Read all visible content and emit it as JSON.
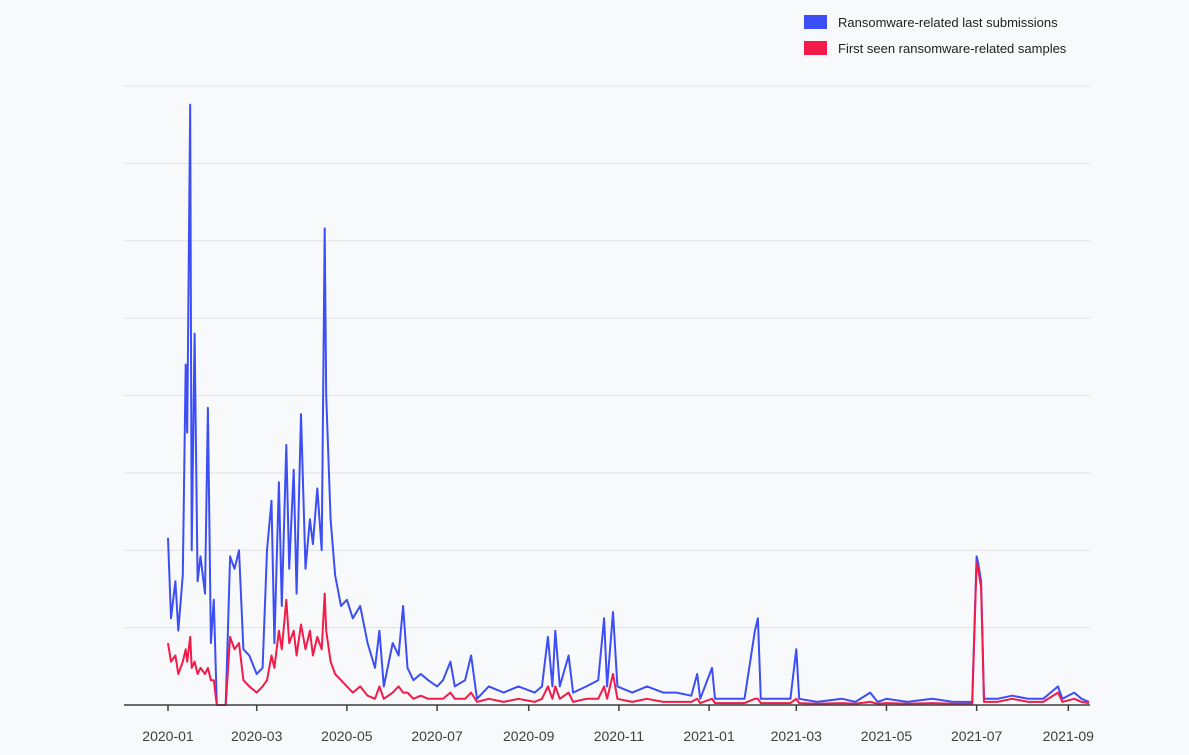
{
  "chart_data": {
    "type": "line",
    "title": "",
    "xlabel": "",
    "ylabel": "",
    "x_ticks": [
      "2020-01",
      "2020-03",
      "2020-05",
      "2020-07",
      "2020-09",
      "2020-11",
      "2021-01",
      "2021-03",
      "2021-05",
      "2021-07",
      "2021-09"
    ],
    "x_range": [
      "2020-01-01",
      "2021-09-15"
    ],
    "y_range": [
      0,
      100
    ],
    "y_gridlines": 8,
    "grid": true,
    "legend_position": "top-right",
    "series": [
      {
        "name": "Ransomware-related last submissions",
        "color": "#3d4ef5",
        "points": [
          [
            "2020-01-01",
            27
          ],
          [
            "2020-01-03",
            14
          ],
          [
            "2020-01-06",
            20
          ],
          [
            "2020-01-08",
            12
          ],
          [
            "2020-01-11",
            21
          ],
          [
            "2020-01-13",
            55
          ],
          [
            "2020-01-14",
            44
          ],
          [
            "2020-01-16",
            97
          ],
          [
            "2020-01-17",
            25
          ],
          [
            "2020-01-19",
            60
          ],
          [
            "2020-01-21",
            20
          ],
          [
            "2020-01-23",
            24
          ],
          [
            "2020-01-26",
            18
          ],
          [
            "2020-01-28",
            48
          ],
          [
            "2020-01-30",
            10
          ],
          [
            "2020-02-01",
            17
          ],
          [
            "2020-02-03",
            0
          ],
          [
            "2020-02-06",
            0
          ],
          [
            "2020-02-09",
            0
          ],
          [
            "2020-02-12",
            24
          ],
          [
            "2020-02-15",
            22
          ],
          [
            "2020-02-18",
            25
          ],
          [
            "2020-02-21",
            9
          ],
          [
            "2020-02-25",
            8
          ],
          [
            "2020-03-01",
            5
          ],
          [
            "2020-03-05",
            6
          ],
          [
            "2020-03-08",
            25
          ],
          [
            "2020-03-11",
            33
          ],
          [
            "2020-03-13",
            10
          ],
          [
            "2020-03-16",
            36
          ],
          [
            "2020-03-18",
            16
          ],
          [
            "2020-03-21",
            42
          ],
          [
            "2020-03-23",
            22
          ],
          [
            "2020-03-26",
            38
          ],
          [
            "2020-03-28",
            18
          ],
          [
            "2020-03-31",
            47
          ],
          [
            "2020-04-03",
            22
          ],
          [
            "2020-04-06",
            30
          ],
          [
            "2020-04-08",
            26
          ],
          [
            "2020-04-11",
            35
          ],
          [
            "2020-04-14",
            25
          ],
          [
            "2020-04-16",
            77
          ],
          [
            "2020-04-17",
            50
          ],
          [
            "2020-04-20",
            30
          ],
          [
            "2020-04-23",
            21
          ],
          [
            "2020-04-27",
            16
          ],
          [
            "2020-05-01",
            17
          ],
          [
            "2020-05-05",
            14
          ],
          [
            "2020-05-10",
            16
          ],
          [
            "2020-05-15",
            10
          ],
          [
            "2020-05-20",
            6
          ],
          [
            "2020-05-23",
            12
          ],
          [
            "2020-05-26",
            3
          ],
          [
            "2020-06-01",
            10
          ],
          [
            "2020-06-05",
            8
          ],
          [
            "2020-06-08",
            16
          ],
          [
            "2020-06-11",
            6
          ],
          [
            "2020-06-15",
            4
          ],
          [
            "2020-06-20",
            5
          ],
          [
            "2020-06-25",
            4
          ],
          [
            "2020-07-01",
            3
          ],
          [
            "2020-07-05",
            4
          ],
          [
            "2020-07-10",
            7
          ],
          [
            "2020-07-13",
            3
          ],
          [
            "2020-07-20",
            4
          ],
          [
            "2020-07-24",
            8
          ],
          [
            "2020-07-28",
            1
          ],
          [
            "2020-08-05",
            3
          ],
          [
            "2020-08-15",
            2
          ],
          [
            "2020-08-25",
            3
          ],
          [
            "2020-09-05",
            2
          ],
          [
            "2020-09-10",
            3
          ],
          [
            "2020-09-14",
            11
          ],
          [
            "2020-09-17",
            3
          ],
          [
            "2020-09-19",
            12
          ],
          [
            "2020-09-22",
            3
          ],
          [
            "2020-09-28",
            8
          ],
          [
            "2020-10-01",
            2
          ],
          [
            "2020-10-10",
            3
          ],
          [
            "2020-10-18",
            4
          ],
          [
            "2020-10-22",
            14
          ],
          [
            "2020-10-24",
            3
          ],
          [
            "2020-10-28",
            15
          ],
          [
            "2020-10-31",
            3
          ],
          [
            "2020-11-10",
            2
          ],
          [
            "2020-11-20",
            3
          ],
          [
            "2020-12-01",
            2
          ],
          [
            "2020-12-10",
            2
          ],
          [
            "2020-12-20",
            1.5
          ],
          [
            "2020-12-24",
            5
          ],
          [
            "2020-12-26",
            1
          ],
          [
            "2021-01-03",
            6
          ],
          [
            "2021-01-05",
            1
          ],
          [
            "2021-01-15",
            1
          ],
          [
            "2021-01-25",
            1
          ],
          [
            "2021-02-01",
            12
          ],
          [
            "2021-02-03",
            14
          ],
          [
            "2021-02-05",
            1
          ],
          [
            "2021-02-15",
            1
          ],
          [
            "2021-02-25",
            1
          ],
          [
            "2021-03-01",
            9
          ],
          [
            "2021-03-03",
            1
          ],
          [
            "2021-03-15",
            0.5
          ],
          [
            "2021-04-01",
            1
          ],
          [
            "2021-04-10",
            0.5
          ],
          [
            "2021-04-20",
            2
          ],
          [
            "2021-04-25",
            0.5
          ],
          [
            "2021-05-01",
            1
          ],
          [
            "2021-05-15",
            0.5
          ],
          [
            "2021-06-01",
            1
          ],
          [
            "2021-06-15",
            0.5
          ],
          [
            "2021-06-28",
            0.5
          ],
          [
            "2021-07-01",
            24
          ],
          [
            "2021-07-02",
            23
          ],
          [
            "2021-07-04",
            20
          ],
          [
            "2021-07-06",
            1
          ],
          [
            "2021-07-15",
            1
          ],
          [
            "2021-07-25",
            1.5
          ],
          [
            "2021-08-05",
            1
          ],
          [
            "2021-08-15",
            1
          ],
          [
            "2021-08-25",
            3
          ],
          [
            "2021-08-28",
            1
          ],
          [
            "2021-09-05",
            2
          ],
          [
            "2021-09-10",
            1
          ],
          [
            "2021-09-15",
            0.5
          ]
        ]
      },
      {
        "name": "First seen ransomware-related samples",
        "color": "#f21b4a",
        "points": [
          [
            "2020-01-01",
            10
          ],
          [
            "2020-01-03",
            7
          ],
          [
            "2020-01-06",
            8
          ],
          [
            "2020-01-08",
            5
          ],
          [
            "2020-01-11",
            7
          ],
          [
            "2020-01-13",
            9
          ],
          [
            "2020-01-14",
            7
          ],
          [
            "2020-01-16",
            11
          ],
          [
            "2020-01-17",
            6
          ],
          [
            "2020-01-19",
            7
          ],
          [
            "2020-01-21",
            5
          ],
          [
            "2020-01-23",
            6
          ],
          [
            "2020-01-26",
            5
          ],
          [
            "2020-01-28",
            6
          ],
          [
            "2020-01-30",
            4
          ],
          [
            "2020-02-01",
            4
          ],
          [
            "2020-02-03",
            0
          ],
          [
            "2020-02-06",
            0
          ],
          [
            "2020-02-09",
            0
          ],
          [
            "2020-02-12",
            11
          ],
          [
            "2020-02-15",
            9
          ],
          [
            "2020-02-18",
            10
          ],
          [
            "2020-02-21",
            4
          ],
          [
            "2020-02-25",
            3
          ],
          [
            "2020-03-01",
            2
          ],
          [
            "2020-03-05",
            3
          ],
          [
            "2020-03-08",
            4
          ],
          [
            "2020-03-11",
            8
          ],
          [
            "2020-03-13",
            6
          ],
          [
            "2020-03-16",
            12
          ],
          [
            "2020-03-18",
            9
          ],
          [
            "2020-03-21",
            17
          ],
          [
            "2020-03-23",
            10
          ],
          [
            "2020-03-26",
            12
          ],
          [
            "2020-03-28",
            8
          ],
          [
            "2020-03-31",
            13
          ],
          [
            "2020-04-03",
            9
          ],
          [
            "2020-04-06",
            12
          ],
          [
            "2020-04-08",
            8
          ],
          [
            "2020-04-11",
            11
          ],
          [
            "2020-04-14",
            9
          ],
          [
            "2020-04-16",
            18
          ],
          [
            "2020-04-17",
            12
          ],
          [
            "2020-04-20",
            7
          ],
          [
            "2020-04-23",
            5
          ],
          [
            "2020-04-27",
            4
          ],
          [
            "2020-05-01",
            3
          ],
          [
            "2020-05-05",
            2
          ],
          [
            "2020-05-10",
            3
          ],
          [
            "2020-05-15",
            1.5
          ],
          [
            "2020-05-20",
            1
          ],
          [
            "2020-05-23",
            3
          ],
          [
            "2020-05-26",
            1
          ],
          [
            "2020-06-01",
            2
          ],
          [
            "2020-06-05",
            3
          ],
          [
            "2020-06-08",
            2
          ],
          [
            "2020-06-11",
            2
          ],
          [
            "2020-06-15",
            1
          ],
          [
            "2020-06-20",
            1.5
          ],
          [
            "2020-06-25",
            1
          ],
          [
            "2020-07-01",
            1
          ],
          [
            "2020-07-05",
            1
          ],
          [
            "2020-07-10",
            2
          ],
          [
            "2020-07-13",
            1
          ],
          [
            "2020-07-20",
            1
          ],
          [
            "2020-07-24",
            2
          ],
          [
            "2020-07-28",
            0.5
          ],
          [
            "2020-08-05",
            1
          ],
          [
            "2020-08-15",
            0.5
          ],
          [
            "2020-08-25",
            1
          ],
          [
            "2020-09-05",
            0.5
          ],
          [
            "2020-09-10",
            1
          ],
          [
            "2020-09-14",
            3
          ],
          [
            "2020-09-17",
            1
          ],
          [
            "2020-09-19",
            3
          ],
          [
            "2020-09-22",
            1
          ],
          [
            "2020-09-28",
            2
          ],
          [
            "2020-10-01",
            0.5
          ],
          [
            "2020-10-10",
            1
          ],
          [
            "2020-10-18",
            1
          ],
          [
            "2020-10-22",
            3
          ],
          [
            "2020-10-24",
            1
          ],
          [
            "2020-10-28",
            5
          ],
          [
            "2020-10-31",
            1
          ],
          [
            "2020-11-10",
            0.5
          ],
          [
            "2020-11-20",
            1
          ],
          [
            "2020-12-01",
            0.5
          ],
          [
            "2020-12-10",
            0.5
          ],
          [
            "2020-12-20",
            0.5
          ],
          [
            "2020-12-24",
            1
          ],
          [
            "2020-12-26",
            0.3
          ],
          [
            "2021-01-03",
            1
          ],
          [
            "2021-01-05",
            0.3
          ],
          [
            "2021-01-15",
            0.3
          ],
          [
            "2021-01-25",
            0.3
          ],
          [
            "2021-02-01",
            1
          ],
          [
            "2021-02-03",
            1
          ],
          [
            "2021-02-05",
            0.3
          ],
          [
            "2021-02-15",
            0.3
          ],
          [
            "2021-02-25",
            0.3
          ],
          [
            "2021-03-01",
            1
          ],
          [
            "2021-03-03",
            0.3
          ],
          [
            "2021-03-15",
            0.2
          ],
          [
            "2021-04-01",
            0.3
          ],
          [
            "2021-04-10",
            0.2
          ],
          [
            "2021-04-20",
            0.5
          ],
          [
            "2021-04-25",
            0.2
          ],
          [
            "2021-05-01",
            0.3
          ],
          [
            "2021-05-15",
            0.2
          ],
          [
            "2021-06-01",
            0.3
          ],
          [
            "2021-06-15",
            0.2
          ],
          [
            "2021-06-28",
            0.2
          ],
          [
            "2021-07-01",
            23
          ],
          [
            "2021-07-02",
            22
          ],
          [
            "2021-07-04",
            19
          ],
          [
            "2021-07-06",
            0.5
          ],
          [
            "2021-07-15",
            0.5
          ],
          [
            "2021-07-25",
            1
          ],
          [
            "2021-08-05",
            0.5
          ],
          [
            "2021-08-15",
            0.5
          ],
          [
            "2021-08-25",
            2
          ],
          [
            "2021-08-28",
            0.5
          ],
          [
            "2021-09-05",
            1
          ],
          [
            "2021-09-10",
            0.5
          ],
          [
            "2021-09-15",
            0.3
          ]
        ]
      }
    ]
  }
}
